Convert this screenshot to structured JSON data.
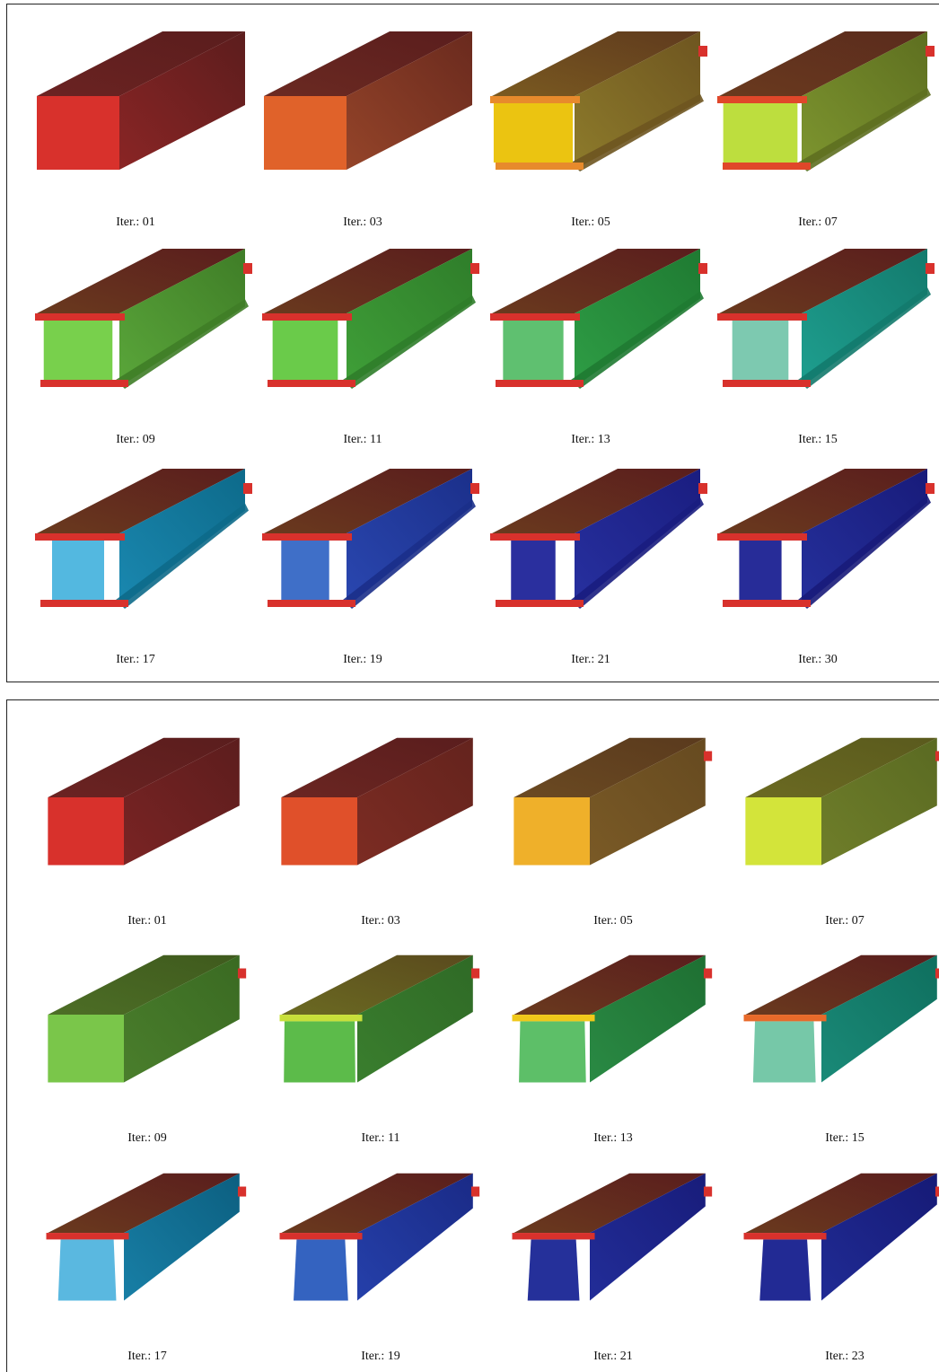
{
  "panels": [
    {
      "id": "top",
      "shape": "i-beam",
      "cells": [
        {
          "label": "Iter.: 01",
          "front": "#d8312c",
          "flange": "#d8312c",
          "top_end": "#5a1d1d",
          "top_start": "#6b2322",
          "side_end": "#5c1d1d",
          "side_start": "#8a2525",
          "web": 0.0,
          "taper": 0.0,
          "tip": false
        },
        {
          "label": "Iter.: 03",
          "front": "#e0622a",
          "flange": "#e0622a",
          "top_end": "#5a1d1d",
          "top_start": "#6b2a22",
          "side_end": "#6a2a1e",
          "side_start": "#944429",
          "web": 0.0,
          "taper": 0.0,
          "tip": false
        },
        {
          "label": "Iter.: 05",
          "front": "#ebc411",
          "flange": "#e78a2c",
          "top_end": "#5f3a1e",
          "top_start": "#7a5a20",
          "side_end": "#6e5520",
          "side_start": "#8d7b2b",
          "web": 0.05,
          "taper": 0.1,
          "tip": true
        },
        {
          "label": "Iter.: 07",
          "front": "#bdde3e",
          "flange": "#e0472a",
          "top_end": "#5a2b1d",
          "top_start": "#6a3a1e",
          "side_end": "#5e6f20",
          "side_start": "#7d952f",
          "web": 0.12,
          "taper": 0.25,
          "tip": true
        },
        {
          "label": "Iter.: 09",
          "front": "#78d04c",
          "flange": "#d8312c",
          "top_end": "#5a1d1d",
          "top_start": "#6a3a1e",
          "side_end": "#3f7d27",
          "side_start": "#5aa63a",
          "web": 0.2,
          "taper": 0.4,
          "tip": true
        },
        {
          "label": "Iter.: 11",
          "front": "#6acb4a",
          "flange": "#d8312c",
          "top_end": "#5a1d1d",
          "top_start": "#6a3a1e",
          "side_end": "#2f7d2a",
          "side_start": "#3f9f38",
          "web": 0.25,
          "taper": 0.5,
          "tip": true
        },
        {
          "label": "Iter.: 13",
          "front": "#5fc070",
          "flange": "#d8312c",
          "top_end": "#5a1d1d",
          "top_start": "#6a3a1e",
          "side_end": "#1f7a32",
          "side_start": "#2e9d45",
          "web": 0.32,
          "taper": 0.6,
          "tip": true
        },
        {
          "label": "Iter.: 15",
          "front": "#7dc9b0",
          "flange": "#d8312c",
          "top_end": "#5a1d1d",
          "top_start": "#6a3a1e",
          "side_end": "#137a6d",
          "side_start": "#1e9f8f",
          "web": 0.38,
          "taper": 0.7,
          "tip": true
        },
        {
          "label": "Iter.: 17",
          "front": "#53b8e0",
          "flange": "#d8312c",
          "top_end": "#5a1d1d",
          "top_start": "#6a3a1e",
          "side_end": "#0d6a8a",
          "side_start": "#1a88b0",
          "web": 0.44,
          "taper": 0.8,
          "tip": true
        },
        {
          "label": "Iter.: 19",
          "front": "#3f6fc8",
          "flange": "#d8312c",
          "top_end": "#5a1d1d",
          "top_start": "#6a3a1e",
          "side_end": "#1b2f8a",
          "side_start": "#2a47b0",
          "web": 0.5,
          "taper": 0.9,
          "tip": true
        },
        {
          "label": "Iter.: 21",
          "front": "#2a2f9e",
          "flange": "#d8312c",
          "top_end": "#5a1d1d",
          "top_start": "#6a3a1e",
          "side_end": "#1a1d80",
          "side_start": "#27309f",
          "web": 0.55,
          "taper": 0.95,
          "tip": true
        },
        {
          "label": "Iter.: 30",
          "front": "#272c98",
          "flange": "#d8312c",
          "top_end": "#5a1d1d",
          "top_start": "#6a3a1e",
          "side_end": "#181b7a",
          "side_start": "#25309c",
          "web": 0.58,
          "taper": 1.0,
          "tip": true
        }
      ]
    },
    {
      "id": "bottom",
      "shape": "t-beam",
      "cells": [
        {
          "label": "Iter.: 01",
          "front": "#d8312c",
          "flange": "#d8312c",
          "top_end": "#5a1d1d",
          "top_start": "#6b2322",
          "side_end": "#5c1d1d",
          "side_start": "#7a2424",
          "web": 0.0,
          "taper": 0.0,
          "tip": false
        },
        {
          "label": "Iter.: 03",
          "front": "#e0502a",
          "flange": "#e0502a",
          "top_end": "#5a1d1d",
          "top_start": "#6b2622",
          "side_end": "#64231d",
          "side_start": "#7c2c23",
          "web": 0.0,
          "taper": 0.0,
          "tip": false
        },
        {
          "label": "Iter.: 05",
          "front": "#efb02a",
          "flange": "#efb02a",
          "top_end": "#5a3a1d",
          "top_start": "#6b4a22",
          "side_end": "#664a20",
          "side_start": "#7a5a26",
          "web": 0.0,
          "taper": 0.0,
          "tip": true
        },
        {
          "label": "Iter.: 07",
          "front": "#d3e43a",
          "flange": "#d3e43a",
          "top_end": "#5a5a1d",
          "top_start": "#6b6a22",
          "side_end": "#5a6a22",
          "side_start": "#6f7e2a",
          "web": 0.0,
          "taper": 0.0,
          "tip": true
        },
        {
          "label": "Iter.: 09",
          "front": "#7ac64a",
          "flange": "#7ac64a",
          "top_end": "#3f5a1d",
          "top_start": "#4d6e26",
          "side_end": "#3a6a22",
          "side_start": "#4a7e2c",
          "web": 0.0,
          "taper": 0.1,
          "tip": true
        },
        {
          "label": "Iter.: 11",
          "front": "#5cbb4a",
          "flange": "#c8e03a",
          "top_end": "#5a4a1d",
          "top_start": "#6b6a22",
          "side_end": "#2f6a26",
          "side_start": "#3a7e2e",
          "web": 0.1,
          "taper": 0.3,
          "tip": true
        },
        {
          "label": "Iter.: 13",
          "front": "#5dbf68",
          "flange": "#f0c81a",
          "top_end": "#5a1d1d",
          "top_start": "#6a3a1e",
          "side_end": "#1e6f32",
          "side_start": "#2a8a44",
          "web": 0.2,
          "taper": 0.5,
          "tip": true
        },
        {
          "label": "Iter.: 15",
          "front": "#76c8a8",
          "flange": "#e86a2a",
          "top_end": "#5a1d1d",
          "top_start": "#6a3a1e",
          "side_end": "#0f6f5e",
          "side_start": "#1a8a78",
          "web": 0.3,
          "taper": 0.65,
          "tip": true
        },
        {
          "label": "Iter.: 17",
          "front": "#5ab8e0",
          "flange": "#d8312c",
          "top_end": "#5a1d1d",
          "top_start": "#6a3a1e",
          "side_end": "#0c5f80",
          "side_start": "#187fa6",
          "web": 0.4,
          "taper": 0.8,
          "tip": true
        },
        {
          "label": "Iter.: 19",
          "front": "#3463c0",
          "flange": "#d8312c",
          "top_end": "#5a1d1d",
          "top_start": "#6a3a1e",
          "side_end": "#1a2a86",
          "side_start": "#2540aa",
          "web": 0.48,
          "taper": 0.9,
          "tip": true
        },
        {
          "label": "Iter.: 21",
          "front": "#25309a",
          "flange": "#d8312c",
          "top_end": "#5a1d1d",
          "top_start": "#6a3a1e",
          "side_end": "#181c7a",
          "side_start": "#222d98",
          "web": 0.54,
          "taper": 0.95,
          "tip": true
        },
        {
          "label": "Iter.: 23",
          "front": "#222a94",
          "flange": "#d8312c",
          "top_end": "#5a1d1d",
          "top_start": "#6a3a1e",
          "side_end": "#161a76",
          "side_start": "#202b94",
          "web": 0.56,
          "taper": 1.0,
          "tip": true
        }
      ]
    }
  ]
}
